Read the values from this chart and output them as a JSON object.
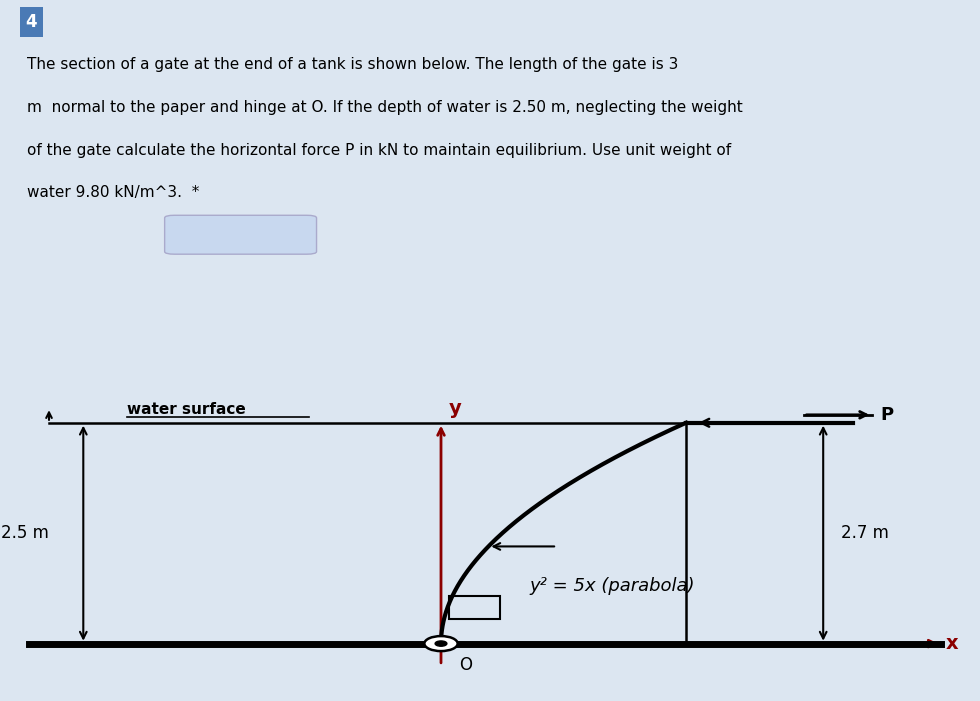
{
  "title_box_color": "#4a7ab5",
  "title_number": "4",
  "title_number_color": "#ffffff",
  "title_number_fontsize": 12,
  "problem_text_line1": "The section of a gate at the end of a tank is shown below. The length of the gate is 3",
  "problem_text_line2": "m  normal to the paper and hinge at O. If the depth of water is 2.50 m, neglecting the weight",
  "problem_text_line3": "of the gate calculate the horizontal force P in kN to maintain equilibrium. Use unit weight of",
  "problem_text_line4": "water 9.80 kN/m^3.  *",
  "problem_text_fontsize": 11,
  "header_bg_color": "#dce6f1",
  "diagram_bg_color": "#ffffff",
  "water_surface_label": "water surface",
  "depth_label": "2.5 m",
  "right_label": "2.7 m",
  "parabola_label": "y² = 5x (parabola)",
  "y_axis_label": "y",
  "x_axis_label": "x",
  "origin_label": "O",
  "P_label": "P",
  "parabola_color": "#000000",
  "axis_color": "#8b0000",
  "water_line_color": "#000000",
  "floor_color": "#000000",
  "input_box_color": "#c8d8ef",
  "annotation_color": "#000000"
}
